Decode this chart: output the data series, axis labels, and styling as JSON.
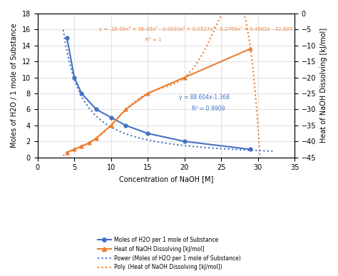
{
  "x_h2o": [
    4,
    5,
    6,
    8,
    10,
    12,
    15,
    20,
    29
  ],
  "y_h2o": [
    15,
    10,
    8,
    6,
    5,
    4,
    3,
    2,
    1
  ],
  "x_heat": [
    4,
    5,
    6,
    7,
    8,
    10,
    12,
    15,
    20,
    29
  ],
  "y_heat_right": [
    -43.5,
    -42.5,
    -41.5,
    -40.5,
    -39.0,
    -35.0,
    -30.0,
    -25.0,
    -20.0,
    -11.0
  ],
  "xlim": [
    0,
    35
  ],
  "ylim_left": [
    0,
    18
  ],
  "ylim_right": [
    -45,
    0
  ],
  "xlabel": "Concentration of NaOH [M]",
  "ylabel_left": "Moles of H2O / 1 mole of Substance",
  "ylabel_right": "Heat of NaOH Dissolving [kJ/mol]",
  "color_blue": "#4472C4",
  "color_orange": "#ED7D31",
  "legend_labels": [
    "Moles of H2O per 1 mole of Substance",
    "Heat of NaOH Dissolving [kJ/mol]",
    "Power (Moles of H2O per 1 mole of Substance)",
    "Poly. (Heat of NaOH Dissolving [kJ/mol])"
  ],
  "xticks": [
    0,
    5,
    10,
    15,
    20,
    25,
    30,
    35
  ],
  "yticks_left": [
    0,
    2,
    4,
    6,
    8,
    10,
    12,
    14,
    16,
    18
  ],
  "yticks_right": [
    -45,
    -40,
    -35,
    -30,
    -25,
    -20,
    -15,
    -10,
    -5,
    0
  ],
  "power_a": 88.604,
  "power_b": -1.368,
  "bg_color": "#FFFFFF",
  "orange_eq_line1": "y = -1E-06x⁶ + 9E-05x⁵ - 0.0033x⁴ + 0.0527x³ - 0.2769x² + 0.4582x - 42.803",
  "orange_eq_line2": "R² = 1",
  "blue_eq_line1": "y = 88.604x",
  "blue_exp": "-1.368",
  "blue_eq_line2": "R² = 0.9909"
}
